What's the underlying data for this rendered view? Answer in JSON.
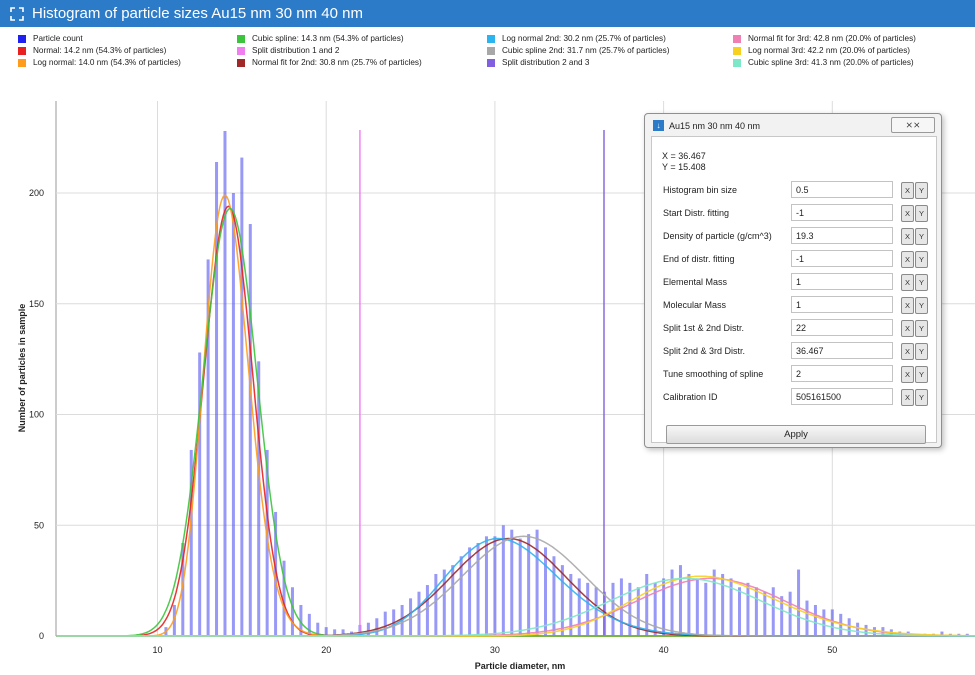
{
  "window": {
    "title": "Histogram of particle sizes Au15 nm 30 nm 40 nm"
  },
  "legend": [
    {
      "label": "Particle count",
      "color": "#2020f0"
    },
    {
      "label": "Normal: 14.2 nm (54.3% of particles)",
      "color": "#e82020"
    },
    {
      "label": "Log normal: 14.0 nm (54.3% of particles)",
      "color": "#ff9c1c"
    },
    {
      "label": "Cubic spline: 14.3 nm (54.3% of particles)",
      "color": "#3cc43c"
    },
    {
      "label": "Split distribution 1 and 2",
      "color": "#f07ef0"
    },
    {
      "label": "Normal fit for 2nd: 30.8 nm (25.7% of particles)",
      "color": "#a02828"
    },
    {
      "label": "Log normal 2nd: 30.2 nm (25.7% of particles)",
      "color": "#2cb4f0"
    },
    {
      "label": "Cubic spline 2nd: 31.7 nm (25.7% of particles)",
      "color": "#a8a8a8"
    },
    {
      "label": "Split distribution 2 and 3",
      "color": "#8060e0"
    },
    {
      "label": "Normal fit for 3rd: 42.8 nm (20.0% of particles)",
      "color": "#f080b4"
    },
    {
      "label": "Log normal 3rd: 42.2 nm (20.0% of particles)",
      "color": "#f8d020"
    },
    {
      "label": "Cubic spline 3rd: 41.3 nm (20.0% of particles)",
      "color": "#7ce8c8"
    }
  ],
  "chart_data": {
    "type": "bar",
    "xlabel": "Particle diameter, nm",
    "ylabel": "Number of particles in sample",
    "xlim": [
      4,
      59
    ],
    "ylim": [
      0,
      230
    ],
    "xticks": [
      10,
      20,
      30,
      40,
      50
    ],
    "yticks": [
      0,
      50,
      100,
      150,
      200
    ],
    "grid": true,
    "legend_position": "top",
    "bin_size": 0.5,
    "histogram": {
      "name": "Particle count",
      "x": [
        10.5,
        11,
        11.5,
        12,
        12.5,
        13,
        13.5,
        14,
        14.5,
        15,
        15.5,
        16,
        16.5,
        17,
        17.5,
        18,
        18.5,
        19,
        19.5,
        20,
        20.5,
        21,
        21.5,
        22,
        22.5,
        23,
        23.5,
        24,
        24.5,
        25,
        25.5,
        26,
        26.5,
        27,
        27.5,
        28,
        28.5,
        29,
        29.5,
        30,
        30.5,
        31,
        31.5,
        32,
        32.5,
        33,
        33.5,
        34,
        34.5,
        35,
        35.5,
        36,
        36.5,
        37,
        37.5,
        38,
        38.5,
        39,
        39.5,
        40,
        40.5,
        41,
        41.5,
        42,
        42.5,
        43,
        43.5,
        44,
        44.5,
        45,
        45.5,
        46,
        46.5,
        47,
        47.5,
        48,
        48.5,
        49,
        49.5,
        50,
        50.5,
        51,
        51.5,
        52,
        52.5,
        53,
        53.5,
        54,
        54.5,
        55,
        55.5,
        56,
        56.5,
        57,
        57.5,
        58
      ],
      "y": [
        4,
        14,
        42,
        84,
        128,
        170,
        214,
        228,
        200,
        216,
        186,
        124,
        84,
        56,
        34,
        22,
        14,
        10,
        6,
        4,
        3,
        3,
        2,
        5,
        6,
        8,
        11,
        12,
        14,
        17,
        20,
        23,
        28,
        30,
        32,
        36,
        40,
        42,
        45,
        45,
        50,
        48,
        44,
        46,
        48,
        40,
        36,
        32,
        28,
        26,
        24,
        22,
        20,
        24,
        26,
        24,
        22,
        28,
        24,
        26,
        30,
        32,
        28,
        26,
        24,
        30,
        28,
        26,
        22,
        24,
        22,
        20,
        22,
        18,
        20,
        30,
        16,
        14,
        12,
        12,
        10,
        8,
        6,
        5,
        4,
        4,
        3,
        2,
        2,
        1,
        1,
        1,
        2,
        1,
        1,
        1
      ]
    },
    "vlines": [
      {
        "name": "Split distribution 1 and 2",
        "x": 22
      },
      {
        "name": "Split distribution 2 and 3",
        "x": 36.467
      }
    ],
    "series": [
      {
        "name": "Normal: 14.2 nm (54.3% of particles)",
        "mean": 14.2,
        "peak": 194,
        "sigma": 1.45
      },
      {
        "name": "Log normal: 14.0 nm (54.3% of particles)",
        "mode": 14.0,
        "peak": 199,
        "sigma_log": 0.095
      },
      {
        "name": "Cubic spline: 14.3 nm (54.3% of particles)",
        "mean": 14.3,
        "peak": 193,
        "sigma": 1.6
      },
      {
        "name": "Normal fit for 2nd: 30.8 nm (25.7% of particles)",
        "mean": 30.8,
        "peak": 44,
        "sigma": 3.4
      },
      {
        "name": "Log normal 2nd: 30.2 nm (25.7% of particles)",
        "mode": 30.2,
        "peak": 44,
        "sigma_log": 0.11
      },
      {
        "name": "Cubic spline 2nd: 31.7 nm (25.7% of particles)",
        "mean": 31.7,
        "peak": 45,
        "sigma": 3.6
      },
      {
        "name": "Normal fit for 3rd: 42.8 nm (20.0% of particles)",
        "mean": 42.8,
        "peak": 26,
        "sigma": 4.4
      },
      {
        "name": "Log normal 3rd: 42.2 nm (20.0% of particles)",
        "mode": 42.2,
        "peak": 27,
        "sigma_log": 0.1
      },
      {
        "name": "Cubic spline 3rd: 41.3 nm (20.0% of particles)",
        "mean": 41.3,
        "peak": 26,
        "sigma": 4.5
      }
    ]
  },
  "dialog": {
    "title": "Au15 nm 30 nm 40 nm",
    "close_label": "⨯⨯",
    "readout_x": "X = 36.467",
    "readout_y": "Y = 15.408",
    "params": [
      {
        "label": "Histogram bin size",
        "value": "0.5"
      },
      {
        "label": "Start Distr. fitting",
        "value": "-1"
      },
      {
        "label": "Density of particle (g/cm^3)",
        "value": "19.3"
      },
      {
        "label": "End of distr. fitting",
        "value": "-1"
      },
      {
        "label": "Elemental Mass",
        "value": "1"
      },
      {
        "label": "Molecular Mass",
        "value": "1"
      },
      {
        "label": "Split 1st & 2nd Distr.",
        "value": "22"
      },
      {
        "label": "Split 2nd & 3rd Distr.",
        "value": "36.467"
      },
      {
        "label": "Tune smoothing of spline",
        "value": "2"
      },
      {
        "label": "Calibration ID",
        "value": "505161500"
      }
    ],
    "btn_x": "X",
    "btn_y": "Y",
    "apply_label": "Apply"
  }
}
